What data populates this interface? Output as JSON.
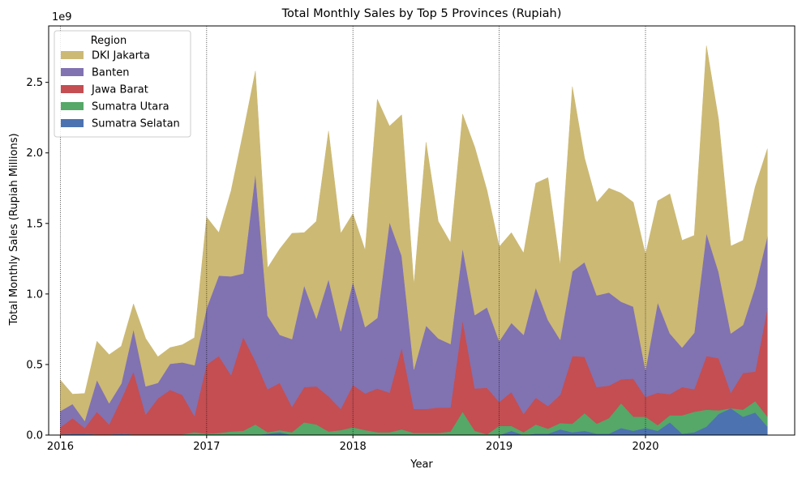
{
  "chart_data": {
    "type": "area",
    "stacked": true,
    "title": "Total Monthly Sales by Top 5 Provinces (Rupiah)",
    "xlabel": "Year",
    "ylabel": "Total Monthly Sales (Rupiah Millions)",
    "y_offset_label": "1e9",
    "x_start": 2016.0,
    "x_step": 0.0833333,
    "xlim": [
      2015.92,
      2021.02
    ],
    "ylim": [
      0,
      2.9
    ],
    "x_ticks": [
      2016,
      2017,
      2018,
      2019,
      2020
    ],
    "x_tick_labels": [
      "2016",
      "2017",
      "2018",
      "2019",
      "2020"
    ],
    "y_ticks": [
      0.0,
      0.5,
      1.0,
      1.5,
      2.0,
      2.5
    ],
    "y_tick_labels": [
      "0.0",
      "0.5",
      "1.0",
      "1.5",
      "2.0",
      "2.5"
    ],
    "vertical_gridlines": [
      2016,
      2017,
      2018,
      2019,
      2020
    ],
    "legend": {
      "title": "Region",
      "position": "top-left"
    },
    "series": [
      {
        "name": "Sumatra Selatan",
        "color": "#4c72b0",
        "values": [
          0.005,
          0.01,
          0.01,
          0.005,
          0.005,
          0.01,
          0.005,
          0.005,
          0.005,
          0.005,
          0.005,
          0.005,
          0.0,
          0.0,
          0.0,
          0.0,
          0.0,
          0.01,
          0.02,
          0.0,
          0.0,
          0.0,
          0.0,
          0.0,
          0.0,
          0.0,
          0.0,
          0.0,
          0.0,
          0.0,
          0.0,
          0.0,
          0.0,
          0.0,
          0.0,
          0.0,
          0.0,
          0.03,
          0.0,
          0.01,
          0.01,
          0.04,
          0.02,
          0.03,
          0.01,
          0.01,
          0.05,
          0.03,
          0.05,
          0.03,
          0.09,
          0.01,
          0.02,
          0.06,
          0.15,
          0.19,
          0.13,
          0.16,
          0.06
        ]
      },
      {
        "name": "Sumatra Utara",
        "color": "#55a868",
        "values": [
          0.0,
          0.0,
          0.0,
          0.0,
          0.0,
          0.0,
          0.0,
          0.0,
          0.0,
          0.0,
          0.0,
          0.015,
          0.01,
          0.015,
          0.025,
          0.03,
          0.075,
          0.01,
          0.015,
          0.02,
          0.09,
          0.075,
          0.025,
          0.035,
          0.055,
          0.035,
          0.02,
          0.02,
          0.04,
          0.015,
          0.015,
          0.015,
          0.025,
          0.165,
          0.03,
          0.005,
          0.065,
          0.035,
          0.02,
          0.065,
          0.035,
          0.045,
          0.06,
          0.125,
          0.07,
          0.11,
          0.175,
          0.1,
          0.08,
          0.04,
          0.05,
          0.13,
          0.145,
          0.12,
          0.025,
          0.0,
          0.05,
          0.08,
          0.07
        ]
      },
      {
        "name": "Jawa Barat",
        "color": "#c44e52",
        "values": [
          0.05,
          0.11,
          0.04,
          0.16,
          0.07,
          0.245,
          0.445,
          0.14,
          0.255,
          0.315,
          0.28,
          0.115,
          0.49,
          0.545,
          0.4,
          0.665,
          0.45,
          0.305,
          0.335,
          0.18,
          0.25,
          0.27,
          0.25,
          0.15,
          0.3,
          0.26,
          0.31,
          0.28,
          0.58,
          0.17,
          0.17,
          0.18,
          0.17,
          0.65,
          0.3,
          0.33,
          0.17,
          0.24,
          0.13,
          0.19,
          0.16,
          0.2,
          0.48,
          0.4,
          0.26,
          0.23,
          0.17,
          0.27,
          0.14,
          0.23,
          0.15,
          0.2,
          0.16,
          0.38,
          0.37,
          0.11,
          0.26,
          0.21,
          0.77
        ]
      },
      {
        "name": "Banten",
        "color": "#8172b2",
        "values": [
          0.115,
          0.1,
          0.05,
          0.225,
          0.15,
          0.11,
          0.3,
          0.2,
          0.11,
          0.185,
          0.23,
          0.36,
          0.4,
          0.57,
          0.7,
          0.45,
          1.33,
          0.52,
          0.34,
          0.48,
          0.72,
          0.48,
          0.83,
          0.55,
          0.73,
          0.47,
          0.5,
          1.21,
          0.65,
          0.28,
          0.59,
          0.49,
          0.45,
          0.51,
          0.52,
          0.57,
          0.43,
          0.49,
          0.56,
          0.78,
          0.61,
          0.39,
          0.6,
          0.67,
          0.65,
          0.66,
          0.55,
          0.51,
          0.19,
          0.64,
          0.43,
          0.28,
          0.4,
          0.87,
          0.61,
          0.42,
          0.34,
          0.6,
          0.51
        ]
      },
      {
        "name": "DKI Jakarta",
        "color": "#ccb974",
        "values": [
          0.22,
          0.07,
          0.195,
          0.275,
          0.345,
          0.265,
          0.18,
          0.34,
          0.185,
          0.115,
          0.125,
          0.195,
          0.645,
          0.305,
          0.605,
          1.0,
          0.725,
          0.34,
          0.61,
          0.75,
          0.375,
          0.69,
          1.05,
          0.695,
          0.485,
          0.545,
          1.55,
          0.68,
          1.0,
          0.6,
          1.3,
          0.83,
          0.72,
          0.95,
          1.19,
          0.83,
          0.67,
          0.64,
          0.58,
          0.74,
          1.01,
          0.53,
          1.31,
          0.74,
          0.66,
          0.74,
          0.77,
          0.74,
          0.82,
          0.72,
          0.99,
          0.76,
          0.69,
          1.33,
          1.08,
          0.62,
          0.6,
          0.71,
          0.62
        ]
      }
    ],
    "legend_order": [
      "DKI Jakarta",
      "Banten",
      "Jawa Barat",
      "Sumatra Utara",
      "Sumatra Selatan"
    ]
  }
}
